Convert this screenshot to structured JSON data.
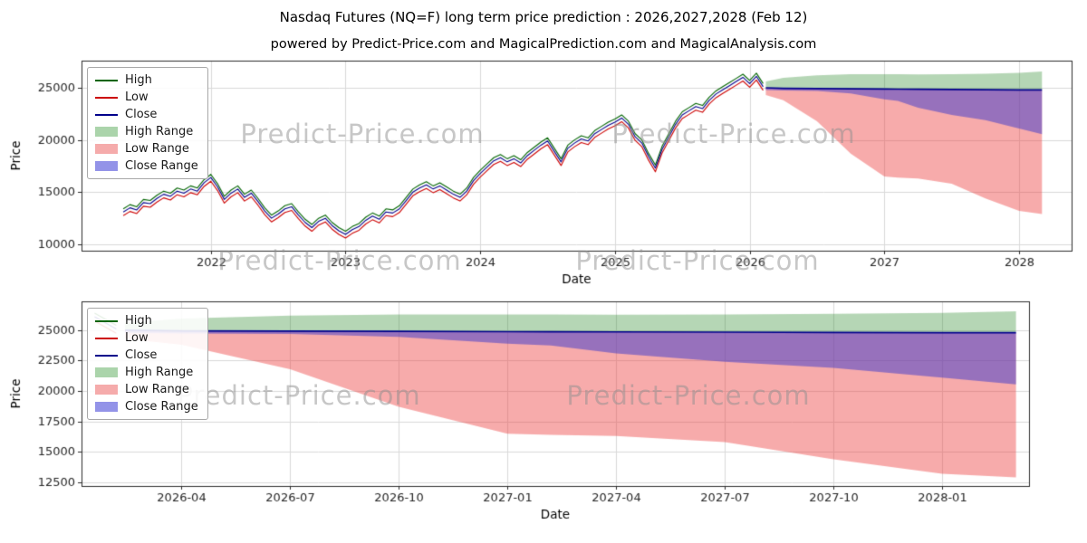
{
  "title": "Nasdaq Futures (NQ=F) long term price prediction : 2026,2027,2028 (Feb 12)",
  "subtitle": "powered by Predict-Price.com and MagicalPrediction.com and MagicalAnalysis.com",
  "watermark": {
    "text": "Predict-Price.com"
  },
  "colors": {
    "high_line": "#006400",
    "low_line": "#cc0000",
    "close_line": "#00008b",
    "high_band": "rgba(30,130,30,0.33)",
    "low_band": "rgba(235,55,55,0.42)",
    "close_band": "rgba(55,55,205,0.5)",
    "grid": "#d9d9d9",
    "spine": "#2b2b2b",
    "tick_text": "#262626"
  },
  "legend": {
    "position": "upper left",
    "items": [
      {
        "label": "High",
        "type": "line",
        "color": "#006400"
      },
      {
        "label": "Low",
        "type": "line",
        "color": "#cc0000"
      },
      {
        "label": "Close",
        "type": "line",
        "color": "#00008b"
      },
      {
        "label": "High Range",
        "type": "patch",
        "color": "#abd4ab"
      },
      {
        "label": "Low Range",
        "type": "patch",
        "color": "#f5abab"
      },
      {
        "label": "Close Range",
        "type": "patch",
        "color": "#9393e8"
      }
    ]
  },
  "chart_data": [
    {
      "type": "line",
      "title": "",
      "xlabel": "Date",
      "ylabel": "Price",
      "grid": true,
      "legend_position": "upper left",
      "xlim": [
        2021.04,
        2028.39
      ],
      "ylim": [
        9390,
        27600
      ],
      "xticks": [
        {
          "v": 2022,
          "label": "2022"
        },
        {
          "v": 2023,
          "label": "2023"
        },
        {
          "v": 2024,
          "label": "2024"
        },
        {
          "v": 2025,
          "label": "2025"
        },
        {
          "v": 2026,
          "label": "2026"
        },
        {
          "v": 2027,
          "label": "2027"
        },
        {
          "v": 2028,
          "label": "2028"
        }
      ],
      "yticks": [
        {
          "v": 10000,
          "label": "10000"
        },
        {
          "v": 15000,
          "label": "15000"
        },
        {
          "v": 20000,
          "label": "20000"
        },
        {
          "v": 25000,
          "label": "25000"
        }
      ],
      "history": {
        "x0": 2021.35,
        "dx": 0.05,
        "high_offset": 300,
        "low_offset": 350,
        "close": [
          13100,
          13500,
          13300,
          14000,
          13900,
          14400,
          14800,
          14600,
          15100,
          14900,
          15300,
          15100,
          15900,
          16400,
          15500,
          14300,
          14900,
          15300,
          14500,
          14900,
          14100,
          13200,
          12500,
          12900,
          13400,
          13600,
          12800,
          12100,
          11600,
          12200,
          12500,
          11800,
          11300,
          10950,
          11400,
          11700,
          12300,
          12700,
          12400,
          13100,
          13000,
          13400,
          14200,
          15000,
          15400,
          15700,
          15300,
          15600,
          15200,
          14800,
          14500,
          15100,
          16100,
          16800,
          17400,
          18000,
          18300,
          17900,
          18200,
          17800,
          18500,
          19000,
          19500,
          19900,
          18900,
          17900,
          19200,
          19700,
          20100,
          19900,
          20600,
          21000,
          21400,
          21700,
          22100,
          21500,
          20300,
          19700,
          18400,
          17300,
          19100,
          20300,
          21500,
          22400,
          22800,
          23200,
          23000,
          23800,
          24400,
          24800,
          25200,
          25600,
          26000,
          25400,
          26100,
          25100
        ]
      },
      "prediction": {
        "x": [
          2026.12,
          2026.25,
          2026.5,
          2026.75,
          2027.0,
          2027.1,
          2027.25,
          2027.5,
          2027.75,
          2028.0,
          2028.17
        ],
        "close": [
          25000,
          24950,
          24920,
          24900,
          24880,
          24870,
          24860,
          24840,
          24820,
          24800,
          24790
        ],
        "high_upper": [
          25600,
          25950,
          26200,
          26300,
          26300,
          26300,
          26280,
          26300,
          26350,
          26430,
          26550
        ],
        "close_lower": [
          24780,
          24730,
          24700,
          24450,
          23900,
          23750,
          23100,
          22400,
          21900,
          21100,
          20550
        ],
        "low_lower": [
          24300,
          23800,
          21800,
          18700,
          16500,
          16400,
          16300,
          15800,
          14400,
          13200,
          12900
        ]
      }
    },
    {
      "type": "line",
      "title": "",
      "xlabel": "Date",
      "ylabel": "Price",
      "grid": true,
      "legend_position": "upper left",
      "xlim": [
        2026.02,
        2028.2
      ],
      "ylim": [
        12200,
        27370
      ],
      "xticks": [
        {
          "v": 2026.25,
          "label": "2026-04"
        },
        {
          "v": 2026.5,
          "label": "2026-07"
        },
        {
          "v": 2026.75,
          "label": "2026-10"
        },
        {
          "v": 2027.0,
          "label": "2027-01"
        },
        {
          "v": 2027.25,
          "label": "2027-04"
        },
        {
          "v": 2027.5,
          "label": "2027-07"
        },
        {
          "v": 2027.75,
          "label": "2027-10"
        },
        {
          "v": 2028.0,
          "label": "2028-01"
        }
      ],
      "yticks": [
        {
          "v": 12500,
          "label": "12500"
        },
        {
          "v": 15000,
          "label": "15000"
        },
        {
          "v": 17500,
          "label": "17500"
        },
        {
          "v": 20000,
          "label": "20000"
        },
        {
          "v": 22500,
          "label": "22500"
        },
        {
          "v": 25000,
          "label": "25000"
        }
      ],
      "history": {
        "x0": 2026.05,
        "dx": 0.05,
        "high_offset": 300,
        "low_offset": 350,
        "close": [
          26100,
          25100
        ]
      },
      "prediction": {
        "x": [
          2026.12,
          2026.25,
          2026.5,
          2026.75,
          2027.0,
          2027.1,
          2027.25,
          2027.5,
          2027.75,
          2028.0,
          2028.17
        ],
        "close": [
          25000,
          24950,
          24920,
          24900,
          24880,
          24870,
          24860,
          24840,
          24820,
          24800,
          24790
        ],
        "high_upper": [
          25600,
          25950,
          26200,
          26300,
          26300,
          26300,
          26280,
          26300,
          26350,
          26430,
          26550
        ],
        "close_lower": [
          24780,
          24730,
          24700,
          24450,
          23900,
          23750,
          23100,
          22400,
          21900,
          21100,
          20550
        ],
        "low_lower": [
          24300,
          23800,
          21800,
          18700,
          16500,
          16400,
          16300,
          15800,
          14400,
          13200,
          12900
        ]
      }
    }
  ]
}
